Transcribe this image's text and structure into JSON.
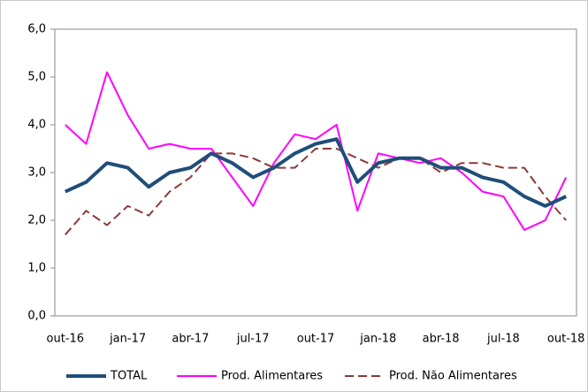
{
  "chart_data": {
    "type": "line",
    "categories": [
      "out-16",
      null,
      null,
      "jan-17",
      null,
      null,
      "abr-17",
      null,
      null,
      "jul-17",
      null,
      null,
      "out-17",
      null,
      null,
      "jan-18",
      null,
      null,
      "abr-18",
      null,
      null,
      "jul-18",
      null,
      null,
      "out-18"
    ],
    "series": [
      {
        "name": "TOTAL",
        "color": "#1f4e79",
        "line_width": 4,
        "dashed": false,
        "values": [
          2.6,
          2.8,
          3.2,
          3.1,
          2.7,
          3.0,
          3.1,
          3.4,
          3.2,
          2.9,
          3.1,
          3.4,
          3.6,
          3.7,
          2.8,
          3.2,
          3.3,
          3.3,
          3.1,
          3.1,
          2.9,
          2.8,
          2.5,
          2.3,
          2.5
        ]
      },
      {
        "name": "Prod. Alimentares",
        "color": "#ff00ff",
        "line_width": 2,
        "dashed": false,
        "values": [
          4.0,
          3.6,
          5.1,
          4.2,
          3.5,
          3.6,
          3.5,
          3.5,
          2.9,
          2.3,
          3.2,
          3.8,
          3.7,
          4.0,
          2.2,
          3.4,
          3.3,
          3.2,
          3.3,
          3.0,
          2.6,
          2.5,
          1.8,
          2.0,
          2.9
        ]
      },
      {
        "name": "Prod. Não Alimentares",
        "color": "#8b3a3a",
        "line_width": 2,
        "dashed": true,
        "values": [
          1.7,
          2.2,
          1.9,
          2.3,
          2.1,
          2.6,
          2.9,
          3.4,
          3.4,
          3.3,
          3.1,
          3.1,
          3.5,
          3.5,
          3.3,
          3.1,
          3.3,
          3.3,
          3.0,
          3.2,
          3.2,
          3.1,
          3.1,
          2.5,
          2.0
        ]
      }
    ],
    "ylim": [
      0,
      6
    ],
    "yticks": [
      {
        "value": 0,
        "label": "0,0"
      },
      {
        "value": 1,
        "label": "1,0"
      },
      {
        "value": 2,
        "label": "2,0"
      },
      {
        "value": 3,
        "label": "3,0"
      },
      {
        "value": 4,
        "label": "4,0"
      },
      {
        "value": 5,
        "label": "5,0"
      },
      {
        "value": 6,
        "label": "6,0"
      }
    ],
    "grid": false,
    "legend": "bottom"
  }
}
